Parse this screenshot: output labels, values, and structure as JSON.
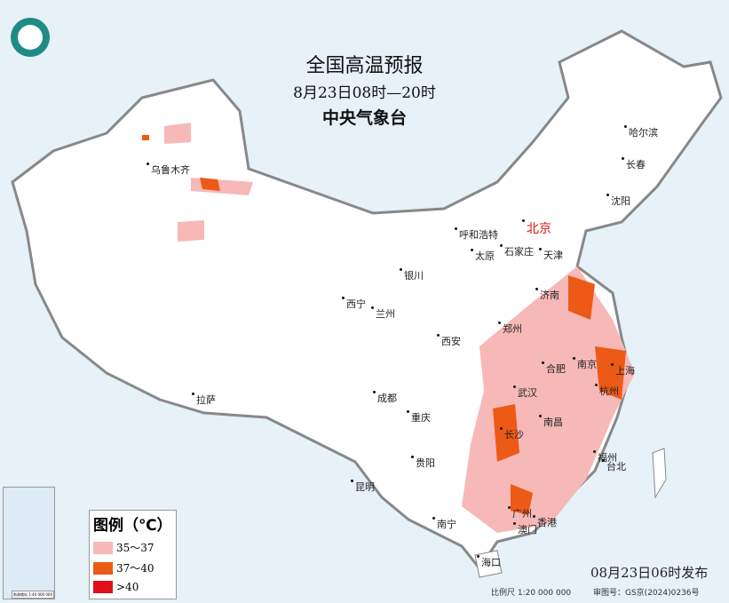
{
  "header": {
    "title": "全国高温预报",
    "period": "8月23日08时—20时",
    "issuer": "中央气象台"
  },
  "legend": {
    "title": "图例（℃）",
    "items": [
      {
        "label": "35～37",
        "color": "#f7b8b8"
      },
      {
        "label": "37～40",
        "color": "#ec5a16"
      },
      {
        "label": ">40",
        "color": "#e0101a"
      }
    ]
  },
  "cities": [
    "哈尔滨",
    "长春",
    "沈阳",
    "北京",
    "天津",
    "呼和浩特",
    "石家庄",
    "太原",
    "济南",
    "银川",
    "西宁",
    "兰州",
    "西安",
    "郑州",
    "合肥",
    "南京",
    "上海",
    "杭州",
    "武汉",
    "成都",
    "重庆",
    "拉萨",
    "长沙",
    "南昌",
    "福州",
    "台北",
    "贵阳",
    "昆明",
    "南宁",
    "广州",
    "澳门",
    "香港",
    "海口",
    "乌鲁木齐"
  ],
  "inset": {
    "label": "南海诸岛 1:40 000 000"
  },
  "footer": {
    "issued": "08月23日06时发布",
    "scale": "比例尺 1:20 000 000",
    "review": "审图号：GS京(2024)0236号"
  },
  "colors": {
    "sea": "#e6f1f8",
    "land": "#ffffff",
    "border": "#888888"
  },
  "logo": {
    "name": "中国气象局"
  }
}
